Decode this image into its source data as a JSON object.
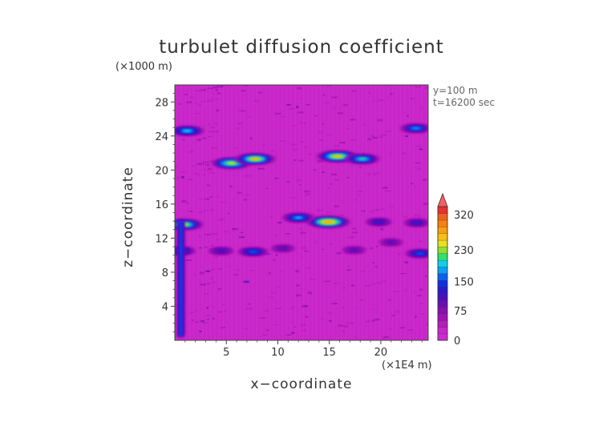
{
  "chart_data": {
    "type": "heatmap",
    "title": "turbulet diffusion coefficient",
    "xlabel": "x−coordinate",
    "ylabel": "z−coordinate",
    "x_unit_label": "(×1E4 m)",
    "z_unit_label": "(×1000 m)",
    "annotations": [
      "y=100 m",
      "t=16200 sec"
    ],
    "xlim": [
      0,
      24.6
    ],
    "ylim": [
      0,
      30
    ],
    "x_ticks": [
      5,
      10,
      15,
      20
    ],
    "x_tick_labels": [
      "5",
      "10",
      "15",
      "20"
    ],
    "y_ticks": [
      4,
      8,
      12,
      16,
      20,
      24,
      28
    ],
    "y_tick_labels": [
      "4",
      "8",
      "12",
      "16",
      "20",
      "24",
      "28"
    ],
    "background_value": 10,
    "colorbar": {
      "levels": [
        0,
        75,
        150,
        230,
        320
      ],
      "level_labels": [
        "0",
        "75",
        "150",
        "230",
        "320"
      ],
      "range": [
        0,
        340
      ],
      "extend": "max",
      "colors": [
        "#d22ad2",
        "#c826c8",
        "#b81cbc",
        "#a012b4",
        "#8a0eb0",
        "#6a0eb4",
        "#4a10c0",
        "#2a18cc",
        "#1030e0",
        "#0a60f0",
        "#0aa0f8",
        "#10d0e8",
        "#30e070",
        "#90e030",
        "#e8e020",
        "#f8c010",
        "#f8a010",
        "#f88010",
        "#f06020",
        "#e83030",
        "#f86060"
      ]
    },
    "features": [
      {
        "x": 5.5,
        "z": 20.8,
        "value": 240
      },
      {
        "x": 7.8,
        "z": 21.3,
        "value": 250
      },
      {
        "x": 15.8,
        "z": 21.6,
        "value": 260
      },
      {
        "x": 18.2,
        "z": 21.3,
        "value": 200
      },
      {
        "x": 1.2,
        "z": 24.6,
        "value": 190
      },
      {
        "x": 23.4,
        "z": 24.9,
        "value": 170
      },
      {
        "x": 14.9,
        "z": 13.9,
        "value": 280
      },
      {
        "x": 12.0,
        "z": 14.4,
        "value": 180
      },
      {
        "x": 0.9,
        "z": 13.6,
        "value": 230
      },
      {
        "x": 0.6,
        "z": 10.5,
        "value": 150
      },
      {
        "x": 7.6,
        "z": 10.4,
        "value": 160
      },
      {
        "x": 23.8,
        "z": 10.2,
        "value": 150
      },
      {
        "x": 19.8,
        "z": 13.9,
        "value": 120
      },
      {
        "x": 23.5,
        "z": 13.8,
        "value": 120
      },
      {
        "x": 4.5,
        "z": 10.5,
        "value": 110
      },
      {
        "x": 10.5,
        "z": 10.8,
        "value": 100
      },
      {
        "x": 17.4,
        "z": 10.6,
        "value": 100
      },
      {
        "x": 21.0,
        "z": 11.5,
        "value": 100
      }
    ]
  }
}
